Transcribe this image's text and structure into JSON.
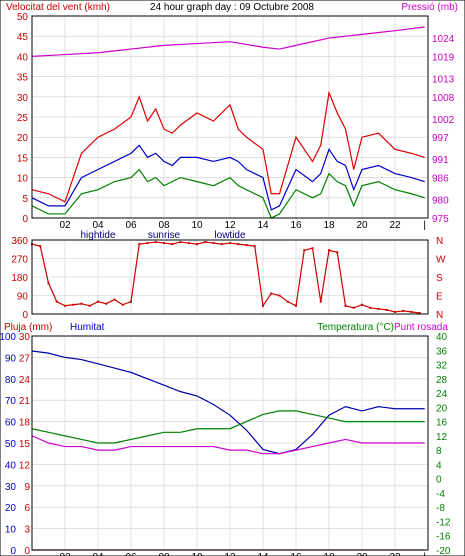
{
  "header": {
    "left_title": "Velocitat del vent (kmh)",
    "center_title": "24 hour graph day : 09 Octubre 2008",
    "right_title": "Pressió (mb)"
  },
  "lower_header": {
    "rain_label": "Pluja (mm)",
    "humidity_label": "Humitat",
    "temp_label": "Temperatura (°C)",
    "dewpoint_label": "Punt rosada"
  },
  "x_axis": {
    "ticks": [
      "02",
      "04",
      "06",
      "08",
      "10",
      "12",
      "14",
      "16",
      "18",
      "20",
      "22",
      "|"
    ],
    "tick_hours": [
      2,
      4,
      6,
      8,
      10,
      12,
      14,
      16,
      18,
      20,
      22,
      23.8
    ],
    "events": [
      {
        "label": "hightide",
        "hour": 4
      },
      {
        "label": "sunrise",
        "hour": 8
      },
      {
        "label": "lowtide",
        "hour": 12
      }
    ]
  },
  "colors": {
    "wind_avg": "#0000cc",
    "wind_gust": "#e00000",
    "wind_low": "#008000",
    "pressure": "#cc00cc",
    "direction": "#cc0000",
    "humidity": "#0000aa",
    "temperature": "#008000",
    "dewpoint": "#cc00cc",
    "rain": "#cc0000",
    "grid": "#cccccc",
    "frame": "#000000"
  },
  "chart_data": [
    {
      "type": "line",
      "title": "24 hour graph day : 09 Octubre 2008",
      "x_range": [
        0,
        24
      ],
      "left_axis": {
        "label": "Velocitat del vent (kmh)",
        "ticks": [
          0,
          5,
          10,
          15,
          20,
          25,
          30,
          35,
          40,
          45,
          50
        ],
        "ylim": [
          0,
          50
        ]
      },
      "right_axis": {
        "label": "Pressió (mb)",
        "ticks": [
          975,
          980,
          986,
          991,
          997,
          1002,
          1008,
          1013,
          1019,
          1024
        ],
        "ylim": [
          975,
          1030
        ]
      },
      "series": [
        {
          "name": "gust",
          "axis": "left",
          "x": [
            0,
            1,
            2,
            3,
            4,
            5,
            6,
            6.5,
            7,
            7.5,
            8,
            8.5,
            9,
            10,
            11,
            12,
            12.5,
            13,
            14,
            14.5,
            15,
            16,
            17,
            17.5,
            18,
            18.5,
            19,
            19.5,
            20,
            21,
            22,
            23,
            23.8
          ],
          "y": [
            7,
            6,
            4,
            16,
            20,
            22,
            25,
            30,
            24,
            27,
            22,
            21,
            23,
            26,
            24,
            28,
            22,
            20,
            17,
            6,
            6,
            20,
            14,
            18,
            31,
            26,
            22,
            12,
            20,
            21,
            17,
            16,
            15
          ]
        },
        {
          "name": "average",
          "axis": "left",
          "x": [
            0,
            1,
            2,
            3,
            4,
            5,
            6,
            6.5,
            7,
            7.5,
            8,
            8.5,
            9,
            10,
            11,
            12,
            12.5,
            13,
            14,
            14.5,
            15,
            16,
            17,
            17.5,
            18,
            18.5,
            19,
            19.5,
            20,
            21,
            22,
            23,
            23.8
          ],
          "y": [
            5,
            3,
            3,
            10,
            12,
            14,
            16,
            18,
            15,
            16,
            14,
            13,
            15,
            15,
            14,
            15,
            14,
            12,
            10,
            2,
            3,
            12,
            9,
            11,
            17,
            14,
            13,
            7,
            12,
            13,
            11,
            10,
            9
          ]
        },
        {
          "name": "low",
          "axis": "left",
          "x": [
            0,
            1,
            2,
            3,
            4,
            5,
            6,
            6.5,
            7,
            7.5,
            8,
            8.5,
            9,
            10,
            11,
            12,
            12.5,
            13,
            14,
            14.5,
            15,
            16,
            17,
            17.5,
            18,
            18.5,
            19,
            19.5,
            20,
            21,
            22,
            23,
            23.8
          ],
          "y": [
            3,
            1,
            1,
            6,
            7,
            9,
            10,
            12,
            9,
            10,
            8,
            9,
            10,
            9,
            8,
            10,
            8,
            7,
            5,
            0,
            1,
            7,
            5,
            6,
            11,
            9,
            8,
            3,
            8,
            9,
            7,
            6,
            5
          ]
        },
        {
          "name": "pressure",
          "axis": "right",
          "x": [
            0,
            2,
            4,
            6,
            8,
            10,
            12,
            14,
            15,
            16,
            18,
            20,
            22,
            23.8
          ],
          "y": [
            1019,
            1019.5,
            1020,
            1021,
            1022,
            1022.5,
            1023,
            1021.5,
            1021,
            1022,
            1024,
            1025,
            1026,
            1027
          ]
        }
      ]
    },
    {
      "type": "scatter",
      "x_range": [
        0,
        24
      ],
      "left_axis": {
        "ticks": [
          0,
          90,
          180,
          270,
          360
        ],
        "ylim": [
          0,
          360
        ]
      },
      "right_axis": {
        "ticks": [
          "N",
          "W",
          "S",
          "E",
          "N"
        ]
      },
      "series": [
        {
          "name": "direction",
          "x": [
            0,
            0.5,
            1,
            1.5,
            2,
            2.5,
            3,
            3.5,
            4,
            4.5,
            5,
            5.5,
            6,
            6.5,
            7,
            7.5,
            8,
            8.5,
            9,
            9.5,
            10,
            10.5,
            11,
            11.5,
            12,
            12.5,
            13,
            13.5,
            14,
            14.5,
            15,
            15.5,
            16,
            16.5,
            17,
            17.5,
            18,
            18.5,
            19,
            19.5,
            20,
            20.5,
            21,
            21.5,
            22,
            22.5,
            23,
            23.5
          ],
          "y": [
            340,
            330,
            150,
            60,
            40,
            45,
            50,
            40,
            60,
            50,
            70,
            45,
            60,
            340,
            345,
            350,
            345,
            340,
            350,
            345,
            340,
            350,
            345,
            340,
            345,
            340,
            335,
            330,
            40,
            100,
            90,
            60,
            40,
            310,
            320,
            60,
            310,
            300,
            40,
            30,
            45,
            30,
            25,
            20,
            10,
            15,
            10,
            5
          ]
        }
      ]
    },
    {
      "type": "line",
      "x_range": [
        0,
        24
      ],
      "left_axis_rain": {
        "label": "Pluja (mm)",
        "ticks": [
          0,
          3,
          6,
          9,
          12,
          15,
          18,
          21,
          24,
          27,
          30
        ],
        "ylim": [
          0,
          30
        ]
      },
      "left_axis_humidity": {
        "label": "Humitat",
        "ticks": [
          0,
          10,
          20,
          30,
          40,
          50,
          60,
          70,
          80,
          90,
          100
        ],
        "ylim": [
          0,
          100
        ]
      },
      "right_axis": {
        "label": "Temperatura (°C)",
        "ticks": [
          -20,
          -16,
          -12,
          -8,
          -4,
          0,
          4,
          8,
          12,
          16,
          20,
          24,
          28,
          32,
          36,
          40
        ],
        "ylim": [
          -20,
          40
        ]
      },
      "series": [
        {
          "name": "Humitat",
          "axis": "humidity",
          "x": [
            0,
            1,
            2,
            3,
            4,
            5,
            6,
            7,
            8,
            9,
            10,
            11,
            12,
            13,
            14,
            15,
            16,
            17,
            18,
            19,
            20,
            21,
            22,
            23,
            23.8
          ],
          "y": [
            93,
            92,
            90,
            89,
            87,
            85,
            83,
            80,
            77,
            74,
            72,
            68,
            63,
            56,
            47,
            45,
            47,
            54,
            63,
            67,
            65,
            67,
            66,
            66,
            66
          ]
        },
        {
          "name": "Temperatura (°C)",
          "axis": "temp",
          "x": [
            0,
            1,
            2,
            3,
            4,
            5,
            6,
            7,
            8,
            9,
            10,
            11,
            12,
            13,
            14,
            15,
            16,
            17,
            18,
            19,
            20,
            21,
            22,
            23,
            23.8
          ],
          "y": [
            14,
            13,
            12,
            11,
            10,
            10,
            11,
            12,
            13,
            13,
            14,
            14,
            14,
            16,
            18,
            19,
            19,
            18,
            17,
            16,
            16,
            16,
            16,
            16,
            16
          ]
        },
        {
          "name": "Punt rosada",
          "axis": "temp",
          "x": [
            0,
            1,
            2,
            3,
            4,
            5,
            6,
            7,
            8,
            9,
            10,
            11,
            12,
            13,
            14,
            15,
            16,
            17,
            18,
            19,
            20,
            21,
            22,
            23,
            23.8
          ],
          "y": [
            12,
            10,
            9,
            9,
            8,
            8,
            9,
            9,
            9,
            9,
            9,
            9,
            8,
            8,
            7,
            7,
            8,
            9,
            10,
            11,
            10,
            10,
            10,
            10,
            10
          ]
        },
        {
          "name": "Pluja (mm)",
          "axis": "rain",
          "x": [
            0,
            23.8
          ],
          "y": [
            0,
            0
          ]
        }
      ]
    }
  ]
}
